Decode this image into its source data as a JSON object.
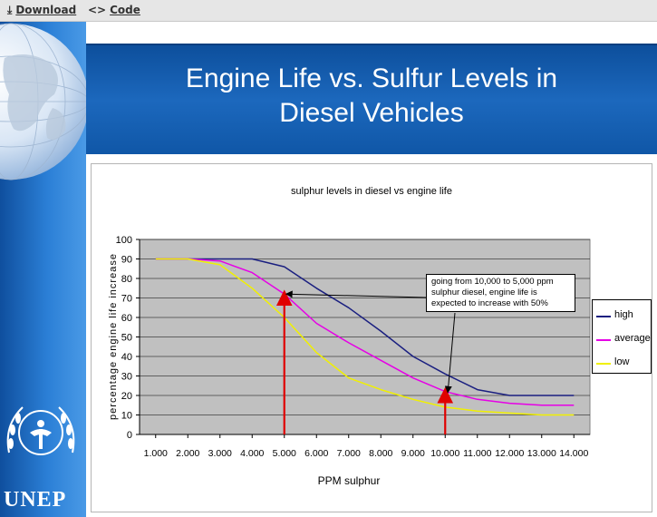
{
  "toolbar": {
    "download_label": "Download",
    "code_label": "Code"
  },
  "slide": {
    "title_line1": "Engine Life vs. Sulfur Levels in",
    "title_line2": "Diesel Vehicles"
  },
  "logo": {
    "text": "UNEP"
  },
  "colors": {
    "high": "#1a1f80",
    "average": "#e600e6",
    "low": "#f0f000",
    "arrow": "#e00000",
    "plot_bg": "#c0c0c0",
    "banner": "#1560b5"
  },
  "chart_data": {
    "type": "line",
    "title": "sulphur levels in diesel vs engine life",
    "xlabel": "PPM sulphur",
    "ylabel": "percentage engine life increase",
    "xlim": [
      500,
      14500
    ],
    "ylim": [
      0,
      100
    ],
    "grid": true,
    "legend_position": "right",
    "x_ticks": [
      1000,
      2000,
      3000,
      4000,
      5000,
      6000,
      7000,
      8000,
      9000,
      10000,
      11000,
      12000,
      13000,
      14000
    ],
    "x_tick_labels": [
      "1.000",
      "2.000",
      "3.000",
      "4.000",
      "5.000",
      "6.000",
      "7.000",
      "8.000",
      "9.000",
      "10.000",
      "11.000",
      "12.000",
      "13.000",
      "14.000"
    ],
    "y_ticks": [
      0,
      10,
      20,
      30,
      40,
      50,
      60,
      70,
      80,
      90,
      100
    ],
    "y_tick_labels": [
      "0",
      "10",
      "20",
      "30",
      "40",
      "50",
      "60",
      "70",
      "80",
      "90",
      "100"
    ],
    "series": [
      {
        "name": "high",
        "color": "#1a1f80",
        "x": [
          1000,
          2000,
          3000,
          4000,
          5000,
          6000,
          7000,
          8000,
          9000,
          10000,
          11000,
          12000,
          13000,
          14000
        ],
        "y": [
          90,
          90,
          90,
          90,
          86,
          75,
          65,
          53,
          40,
          31,
          23,
          20,
          20,
          20
        ]
      },
      {
        "name": "average",
        "color": "#e600e6",
        "x": [
          1000,
          2000,
          3000,
          4000,
          5000,
          6000,
          7000,
          8000,
          9000,
          10000,
          11000,
          12000,
          13000,
          14000
        ],
        "y": [
          90,
          90,
          89,
          83,
          72,
          57,
          47,
          38,
          29,
          22,
          18,
          16,
          15,
          15
        ]
      },
      {
        "name": "low",
        "color": "#f0f000",
        "x": [
          1000,
          2000,
          3000,
          4000,
          5000,
          6000,
          7000,
          8000,
          9000,
          10000,
          11000,
          12000,
          13000,
          14000
        ],
        "y": [
          90,
          90,
          87,
          75,
          60,
          42,
          29,
          23,
          18,
          14,
          12,
          11,
          10,
          10
        ]
      }
    ],
    "annotations": [
      {
        "text": "going from 10,000 to 5,000 ppm sulphur diesel, engine life is expected to increase with 50%"
      }
    ],
    "reference_arrows": [
      {
        "x": 5000,
        "y_from": 0,
        "y_to": 72
      },
      {
        "x": 10000,
        "y_from": 0,
        "y_to": 22
      }
    ],
    "callout_arrows": [
      {
        "target_x": 5000,
        "target_y": 72
      },
      {
        "target_x": 10000,
        "target_y": 22
      }
    ]
  }
}
